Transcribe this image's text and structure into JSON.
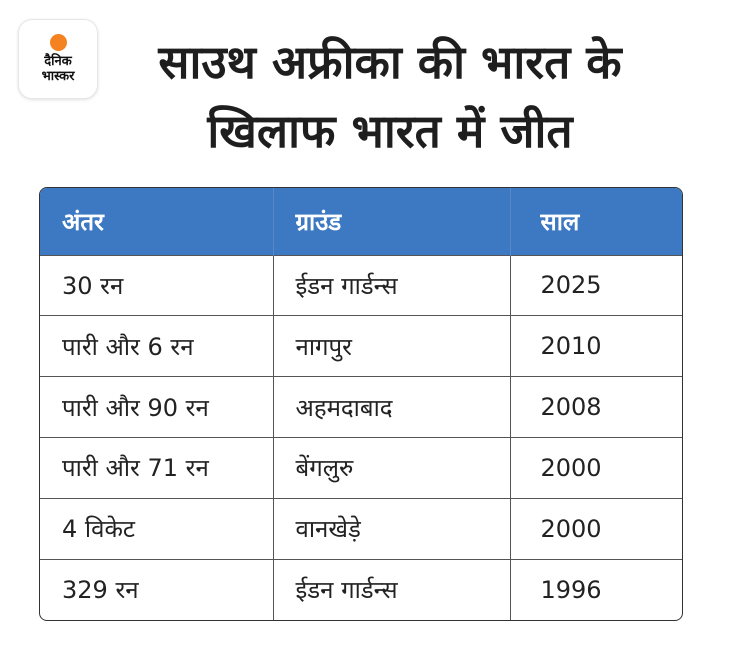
{
  "logo": {
    "line1": "दैनिक",
    "line2": "भास्कर",
    "sun_color": "#f58220"
  },
  "headline": {
    "line1": "साउथ अफ्रीका की भारत के",
    "line2": "खिलाफ भारत में जीत"
  },
  "table": {
    "header_color": "#3d78c2",
    "columns": [
      "अंतर",
      "ग्राउंड",
      "साल"
    ],
    "rows": [
      [
        "30 रन",
        "ईडन गार्डन्स",
        "2025"
      ],
      [
        "पारी और 6 रन",
        "नागपुर",
        "2010"
      ],
      [
        "पारी और 90 रन",
        "अहमदाबाद",
        "2008"
      ],
      [
        "पारी और 71 रन",
        "बेंगलुरु",
        "2000"
      ],
      [
        "4 विकेट",
        "वानखेड़े",
        "2000"
      ],
      [
        "329 रन",
        "ईडन गार्डन्स",
        "1996"
      ]
    ]
  }
}
